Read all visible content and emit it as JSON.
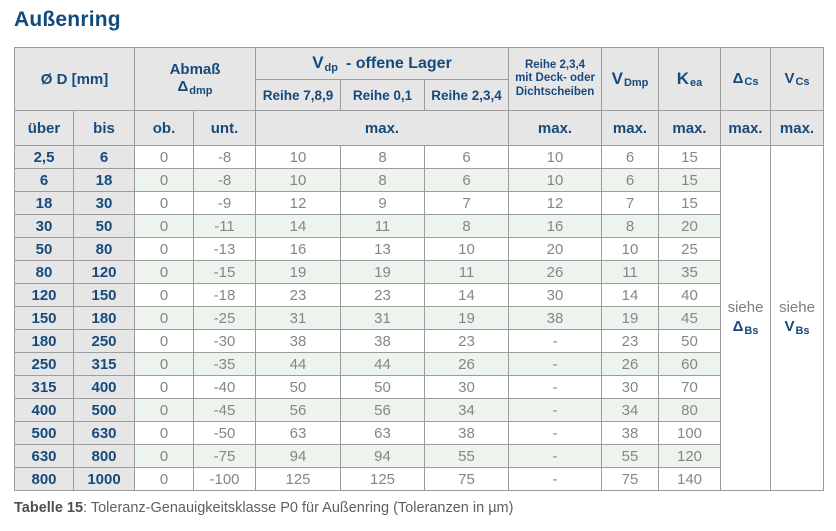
{
  "title": "Außenring",
  "caption": {
    "label": "Tabelle 15",
    "text": ": Toleranz-Genauigkeitsklasse P0 für Außenring (Toleranzen in µm)"
  },
  "colors": {
    "heading_blue": "#134a7e",
    "header_bg": "#e6e6e6",
    "stripe_green": "#edf3ed",
    "value_gray": "#868686",
    "border_gray": "#9c9c9c"
  },
  "header": {
    "diameter": "Ø D  [mm]",
    "abmass_line1": "Abmaß",
    "abmass_sym": "Δ",
    "abmass_sub": "dmp",
    "vdp_sym": "V",
    "vdp_sub": "dp",
    "vdp_rest": "-  offene Lager",
    "reihe_789": "Reihe 7,8,9",
    "reihe_01": "Reihe 0,1",
    "reihe_234": "Reihe 2,3,4",
    "deck": "Reihe 2,3,4\nmit Deck- oder\nDichtscheiben",
    "vdmp_sym": "V",
    "vdmp_sub": "Dmp",
    "kea_sym": "K",
    "kea_sub": "ea",
    "dcs_sym": "Δ",
    "dcs_sub": "Cs",
    "vcs_sym": "V",
    "vcs_sub": "Cs",
    "ueber": "über",
    "bis": "bis",
    "ob": "ob.",
    "unt": "unt.",
    "max": "max."
  },
  "see_refs": [
    {
      "word": "siehe",
      "sym": "Δ",
      "sub": "Bs"
    },
    {
      "word": "siehe",
      "sym": "V",
      "sub": "Bs"
    }
  ],
  "rows": [
    {
      "ueber": "2,5",
      "bis": "6",
      "ob": "0",
      "unt": "-8",
      "r789": "10",
      "r01": "8",
      "r234": "6",
      "deck": "10",
      "vdmp": "6",
      "kea": "15"
    },
    {
      "ueber": "6",
      "bis": "18",
      "ob": "0",
      "unt": "-8",
      "r789": "10",
      "r01": "8",
      "r234": "6",
      "deck": "10",
      "vdmp": "6",
      "kea": "15"
    },
    {
      "ueber": "18",
      "bis": "30",
      "ob": "0",
      "unt": "-9",
      "r789": "12",
      "r01": "9",
      "r234": "7",
      "deck": "12",
      "vdmp": "7",
      "kea": "15"
    },
    {
      "ueber": "30",
      "bis": "50",
      "ob": "0",
      "unt": "-11",
      "r789": "14",
      "r01": "11",
      "r234": "8",
      "deck": "16",
      "vdmp": "8",
      "kea": "20"
    },
    {
      "ueber": "50",
      "bis": "80",
      "ob": "0",
      "unt": "-13",
      "r789": "16",
      "r01": "13",
      "r234": "10",
      "deck": "20",
      "vdmp": "10",
      "kea": "25"
    },
    {
      "ueber": "80",
      "bis": "120",
      "ob": "0",
      "unt": "-15",
      "r789": "19",
      "r01": "19",
      "r234": "11",
      "deck": "26",
      "vdmp": "11",
      "kea": "35"
    },
    {
      "ueber": "120",
      "bis": "150",
      "ob": "0",
      "unt": "-18",
      "r789": "23",
      "r01": "23",
      "r234": "14",
      "deck": "30",
      "vdmp": "14",
      "kea": "40"
    },
    {
      "ueber": "150",
      "bis": "180",
      "ob": "0",
      "unt": "-25",
      "r789": "31",
      "r01": "31",
      "r234": "19",
      "deck": "38",
      "vdmp": "19",
      "kea": "45"
    },
    {
      "ueber": "180",
      "bis": "250",
      "ob": "0",
      "unt": "-30",
      "r789": "38",
      "r01": "38",
      "r234": "23",
      "deck": "-",
      "vdmp": "23",
      "kea": "50"
    },
    {
      "ueber": "250",
      "bis": "315",
      "ob": "0",
      "unt": "-35",
      "r789": "44",
      "r01": "44",
      "r234": "26",
      "deck": "-",
      "vdmp": "26",
      "kea": "60"
    },
    {
      "ueber": "315",
      "bis": "400",
      "ob": "0",
      "unt": "-40",
      "r789": "50",
      "r01": "50",
      "r234": "30",
      "deck": "-",
      "vdmp": "30",
      "kea": "70"
    },
    {
      "ueber": "400",
      "bis": "500",
      "ob": "0",
      "unt": "-45",
      "r789": "56",
      "r01": "56",
      "r234": "34",
      "deck": "-",
      "vdmp": "34",
      "kea": "80"
    },
    {
      "ueber": "500",
      "bis": "630",
      "ob": "0",
      "unt": "-50",
      "r789": "63",
      "r01": "63",
      "r234": "38",
      "deck": "-",
      "vdmp": "38",
      "kea": "100"
    },
    {
      "ueber": "630",
      "bis": "800",
      "ob": "0",
      "unt": "-75",
      "r789": "94",
      "r01": "94",
      "r234": "55",
      "deck": "-",
      "vdmp": "55",
      "kea": "120"
    },
    {
      "ueber": "800",
      "bis": "1000",
      "ob": "0",
      "unt": "-100",
      "r789": "125",
      "r01": "125",
      "r234": "75",
      "deck": "-",
      "vdmp": "75",
      "kea": "140"
    }
  ]
}
